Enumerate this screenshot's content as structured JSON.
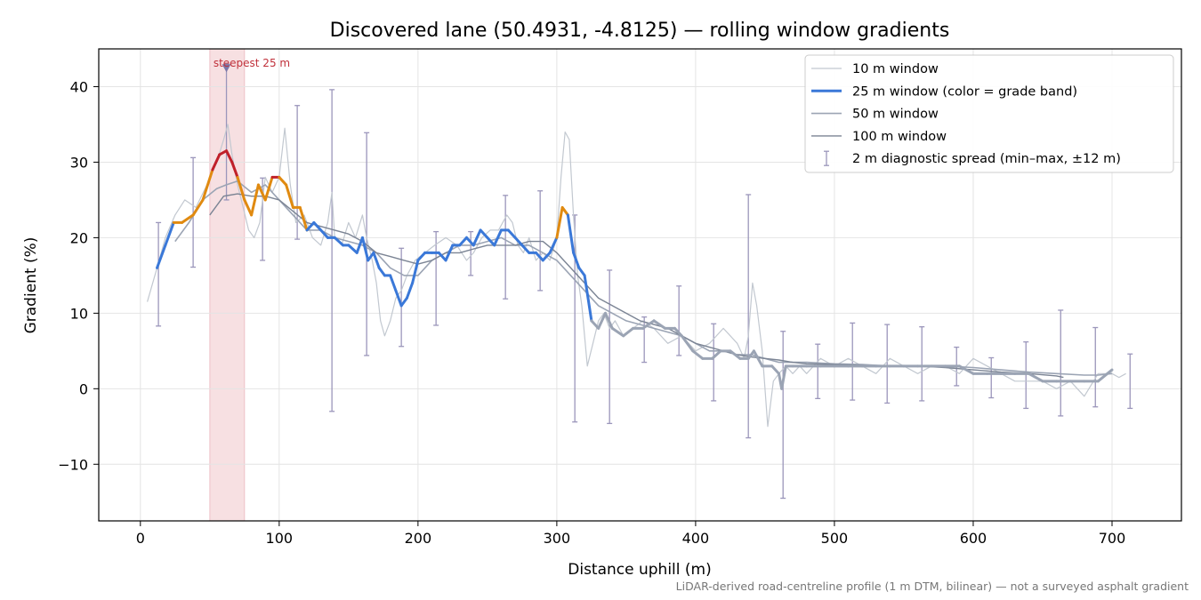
{
  "chart_data": {
    "type": "line",
    "title": "Discovered lane (50.4931, -4.8125) — rolling window gradients",
    "xlabel": "Distance uphill (m)",
    "ylabel": "Gradient (%)",
    "xlim": [
      -30,
      750
    ],
    "ylim": [
      -17.5,
      45
    ],
    "x_ticks": [
      0,
      100,
      200,
      300,
      400,
      500,
      600,
      700
    ],
    "y_ticks": [
      -10,
      0,
      10,
      20,
      30,
      40
    ],
    "x_tick_labels": [
      "0",
      "100",
      "200",
      "300",
      "400",
      "500",
      "600",
      "700"
    ],
    "y_tick_labels": [
      "−10",
      "0",
      "10",
      "20",
      "30",
      "40"
    ],
    "grid": true,
    "legend_position": "upper right",
    "footnote": "LiDAR-derived road-centreline profile (1 m DTM, bilinear) — not a surveyed asphalt gradient",
    "highlight": {
      "label": "steepest 25 m",
      "x_range": [
        50,
        75
      ],
      "marker": [
        62,
        42.5
      ],
      "color": "#e8a5ad"
    },
    "grade_band_colors": {
      "low": "#3a78d8",
      "mid": "#e08a10",
      "high": "#c0202a"
    },
    "grade_band_thresholds": [
      22,
      28
    ],
    "series": [
      {
        "name": "10 m window",
        "color": "#c2c8d0",
        "x": [
          5,
          12,
          18,
          25,
          32,
          40,
          48,
          55,
          60,
          63,
          66,
          70,
          74,
          78,
          82,
          86,
          90,
          95,
          100,
          104,
          108,
          112,
          118,
          124,
          130,
          135,
          138,
          140,
          145,
          150,
          155,
          160,
          163,
          167,
          170,
          173,
          176,
          180,
          184,
          188,
          192,
          198,
          205,
          212,
          220,
          228,
          235,
          240,
          246,
          252,
          258,
          264,
          268,
          272,
          276,
          280,
          285,
          290,
          295,
          300,
          303,
          306,
          309,
          312,
          315,
          318,
          322,
          326,
          330,
          334,
          338,
          342,
          348,
          355,
          362,
          370,
          380,
          390,
          400,
          410,
          420,
          425,
          430,
          435,
          438,
          441,
          444,
          448,
          452,
          456,
          460,
          465,
          470,
          475,
          480,
          490,
          500,
          510,
          520,
          530,
          540,
          550,
          560,
          570,
          580,
          590,
          600,
          610,
          620,
          630,
          640,
          650,
          660,
          670,
          680,
          690,
          700,
          705,
          710
        ],
        "y": [
          11.5,
          16,
          20,
          23,
          25,
          24,
          27,
          30,
          33,
          35,
          31,
          27,
          24,
          21,
          20,
          22,
          28,
          26,
          28,
          34.5,
          27,
          22,
          23,
          20,
          19,
          22,
          26,
          20,
          19,
          22,
          20,
          23,
          20,
          17,
          14,
          9,
          7,
          9,
          12,
          13,
          15,
          17,
          18,
          19,
          20,
          19,
          17,
          18,
          20,
          21,
          21,
          23,
          22,
          19,
          18,
          20,
          17,
          18,
          17,
          20,
          28,
          34,
          33,
          23,
          15,
          11,
          3,
          6,
          9,
          10,
          8,
          9,
          7,
          8,
          9,
          8,
          6,
          7,
          5,
          6,
          8,
          7,
          6,
          4,
          7,
          14,
          11,
          5,
          -5,
          1,
          2,
          3,
          2,
          3,
          2,
          4,
          3,
          4,
          3,
          2,
          4,
          3,
          2,
          3,
          3,
          2,
          4,
          3,
          2,
          1,
          1,
          1,
          0,
          1,
          -1,
          2,
          2,
          1.5,
          2
        ]
      },
      {
        "name": "25 m window (color = grade band)",
        "color": "#3a78d8",
        "x": [
          12,
          18,
          24,
          30,
          38,
          45,
          52,
          57,
          62,
          66,
          70,
          75,
          80,
          85,
          90,
          95,
          100,
          105,
          110,
          115,
          120,
          125,
          130,
          135,
          140,
          146,
          150,
          156,
          160,
          164,
          168,
          172,
          176,
          180,
          184,
          188,
          192,
          196,
          200,
          205,
          210,
          215,
          220,
          225,
          230,
          235,
          240,
          245,
          250,
          255,
          260,
          265,
          270,
          275,
          280,
          285,
          290,
          295,
          300,
          304,
          308,
          312,
          316,
          320,
          325,
          330,
          335,
          340,
          348,
          355,
          362,
          370,
          378,
          385,
          390,
          398,
          405,
          412,
          418,
          425,
          432,
          438,
          442,
          448,
          455,
          460,
          462,
          465,
          470,
          480,
          490,
          500,
          510,
          520,
          530,
          540,
          550,
          560,
          570,
          580,
          590,
          600,
          610,
          620,
          630,
          640,
          650,
          660,
          670,
          680,
          690,
          700
        ],
        "y": [
          16,
          19,
          22,
          22,
          23,
          25,
          29,
          31,
          31.5,
          30,
          28,
          25,
          23,
          27,
          25,
          28,
          28,
          27,
          24,
          24,
          21,
          22,
          21,
          20,
          20,
          19,
          19,
          18,
          20,
          17,
          18,
          16,
          15,
          15,
          13,
          11,
          12,
          14,
          17,
          18,
          18,
          18,
          17,
          19,
          19,
          20,
          19,
          21,
          20,
          19,
          21,
          21,
          20,
          19,
          18,
          18,
          17,
          18,
          20,
          24,
          23,
          18,
          16,
          15,
          9,
          8,
          10,
          8,
          7,
          8,
          8,
          9,
          8,
          8,
          7,
          5,
          4,
          4,
          5,
          5,
          4,
          4,
          5,
          3,
          3,
          2,
          0,
          3,
          3,
          3,
          3,
          3,
          3,
          3,
          3,
          3,
          3,
          3,
          3,
          3,
          3,
          2,
          2,
          2,
          2,
          2,
          1,
          1,
          1,
          1,
          1,
          2.5
        ]
      },
      {
        "name": "50 m window",
        "color": "#9ba4b4",
        "x": [
          25,
          35,
          45,
          55,
          62,
          70,
          80,
          90,
          100,
          110,
          120,
          130,
          140,
          150,
          160,
          170,
          180,
          190,
          200,
          210,
          220,
          230,
          240,
          250,
          260,
          270,
          280,
          290,
          300,
          310,
          320,
          330,
          340,
          350,
          360,
          370,
          380,
          390,
          400,
          410,
          420,
          430,
          440,
          450,
          460,
          470,
          480,
          500,
          520,
          540,
          560,
          580,
          600,
          620,
          640,
          660,
          680,
          690,
          700
        ],
        "y": [
          19.5,
          22,
          25,
          26.5,
          27,
          27.5,
          26,
          27,
          25,
          23,
          21,
          21,
          20,
          19.5,
          19,
          18,
          16,
          15,
          15,
          17,
          18,
          19,
          19,
          19.5,
          20,
          19,
          19,
          18,
          17,
          15,
          13,
          11,
          10,
          9,
          8.5,
          8,
          7.5,
          7,
          6,
          5,
          5,
          4.5,
          4.5,
          4,
          3.5,
          3.5,
          3.5,
          3.3,
          3.2,
          3,
          3,
          3,
          2.8,
          2.5,
          2.2,
          2,
          1.8,
          1.8,
          2
        ]
      },
      {
        "name": "100 m window",
        "color": "#7b8494",
        "x": [
          50,
          60,
          70,
          80,
          90,
          100,
          110,
          120,
          130,
          140,
          150,
          160,
          170,
          180,
          190,
          200,
          210,
          220,
          230,
          240,
          250,
          260,
          270,
          280,
          290,
          300,
          310,
          320,
          330,
          340,
          350,
          360,
          370,
          380,
          390,
          400,
          410,
          420,
          430,
          440,
          450,
          460,
          470,
          480,
          500,
          520,
          540,
          560,
          580,
          600,
          620,
          640,
          660,
          665
        ],
        "y": [
          23,
          25.5,
          25.8,
          25.5,
          25.5,
          25,
          23.5,
          22,
          21.5,
          21,
          20.5,
          19.5,
          18,
          17.5,
          17,
          16.5,
          17,
          18,
          18,
          18.5,
          19,
          19,
          19,
          19.5,
          19.5,
          18,
          16,
          14,
          12,
          11,
          10,
          9,
          8.5,
          8,
          7,
          6,
          5.5,
          5,
          4.5,
          4.2,
          4,
          3.8,
          3.5,
          3.3,
          3.2,
          3.1,
          3,
          3,
          2.8,
          2.5,
          2.2,
          2,
          1.7,
          1.5
        ]
      }
    ],
    "error_bars": {
      "name": "2 m diagnostic spread (min–max, ±12 m)",
      "color": "#9b96bb",
      "x": [
        13,
        38,
        62,
        88,
        113,
        138,
        163,
        188,
        213,
        238,
        263,
        288,
        313,
        338,
        363,
        388,
        413,
        438,
        463,
        488,
        513,
        538,
        563,
        588,
        613,
        638,
        663,
        688,
        713
      ],
      "low": [
        8.3,
        16.1,
        25,
        17,
        19.8,
        -3,
        4.4,
        5.6,
        8.4,
        15,
        11.9,
        13,
        -4.4,
        -4.6,
        3.5,
        4.4,
        -1.6,
        -6.5,
        -14.5,
        -1.3,
        -1.5,
        -1.9,
        -1.6,
        0.4,
        -1.2,
        -2.6,
        -3.6,
        -2.4,
        -2.6
      ],
      "high": [
        22,
        30.6,
        43,
        27.9,
        37.5,
        39.6,
        33.9,
        18.6,
        20.8,
        20.8,
        25.6,
        26.2,
        23,
        15.7,
        9.5,
        13.6,
        8.6,
        25.7,
        7.6,
        5.9,
        8.7,
        8.5,
        8.2,
        5.5,
        4.1,
        6.2,
        10.4,
        8.1,
        4.6
      ]
    }
  }
}
